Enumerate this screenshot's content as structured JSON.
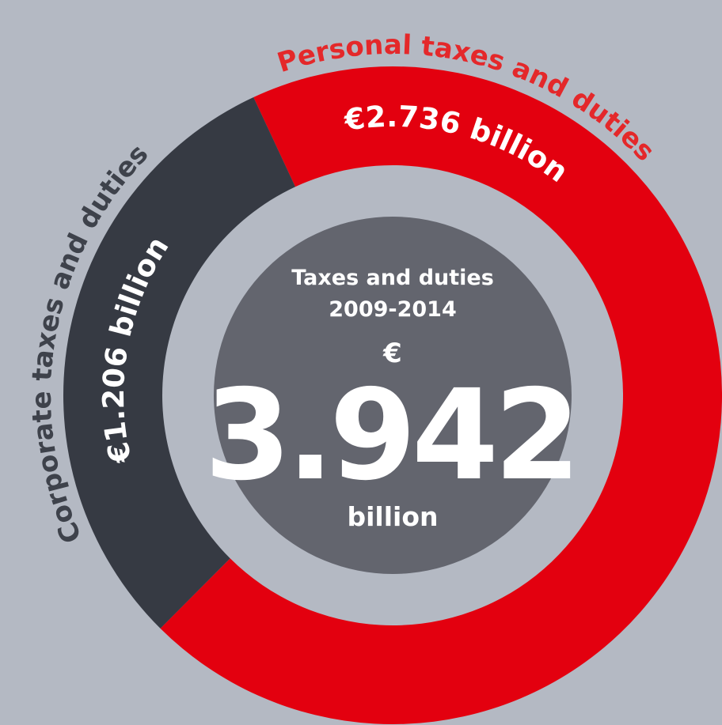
{
  "chart_data": {
    "type": "donut",
    "categories": [
      "Personal taxes and duties",
      "Corporate taxes and duties"
    ],
    "values": [
      2.736,
      1.206
    ],
    "value_labels": [
      "€2.736 billion",
      "€1.206 billion"
    ],
    "colors": [
      "#e3000f",
      "#363a43"
    ],
    "label_colors": [
      "#e4282a",
      "#3e424b"
    ],
    "center_title": [
      "Taxes and duties",
      "2009-2014"
    ],
    "center_symbol": "€",
    "total": 3.942,
    "total_unit": "billion"
  }
}
